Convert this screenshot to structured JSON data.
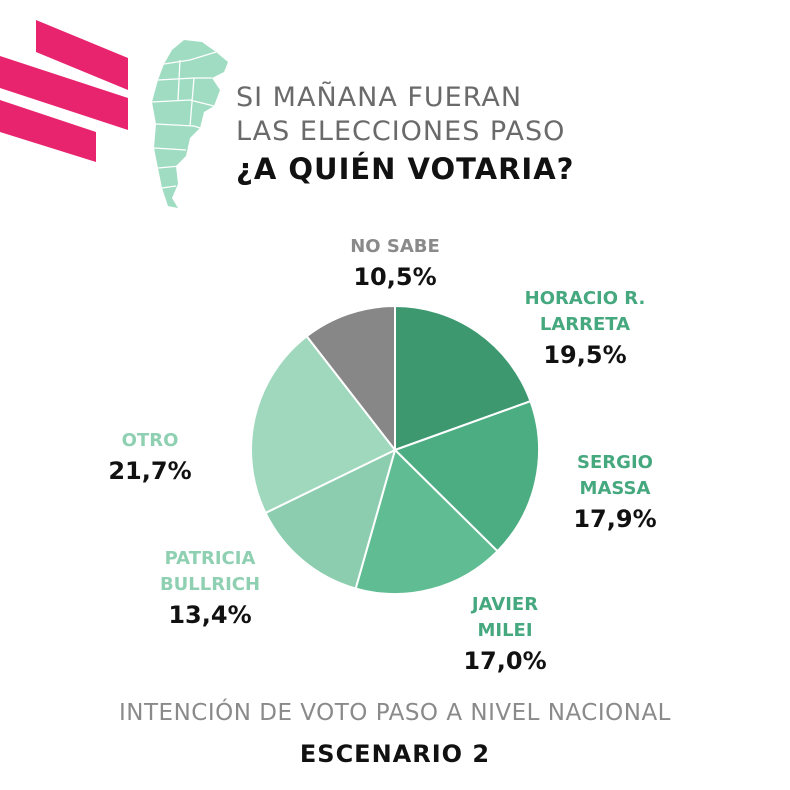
{
  "header": {
    "line1": "SI MAÑANA FUERAN",
    "line2": "LAS ELECCIONES PASO",
    "question": "¿A QUIÉN VOTARIA?"
  },
  "colors": {
    "brand": "#e8246f",
    "map": "#9fdcc2",
    "slice_larreta": "#3d9870",
    "slice_massa": "#4dad82",
    "slice_milei": "#60bd93",
    "slice_bullrich": "#8ccdaf",
    "slice_otro": "#9fd8bd",
    "slice_nosabe": "#878787"
  },
  "chart_data": {
    "type": "pie",
    "title": "",
    "slices": [
      {
        "label_lines": [
          "HORACIO R.",
          "LARRETA"
        ],
        "value": 19.5,
        "value_text": "19,5%",
        "color": "#3d9870"
      },
      {
        "label_lines": [
          "SERGIO",
          "MASSA"
        ],
        "value": 17.9,
        "value_text": "17,9%",
        "color": "#4dad82"
      },
      {
        "label_lines": [
          "JAVIER",
          "MILEI"
        ],
        "value": 17.0,
        "value_text": "17,0%",
        "color": "#60bd93"
      },
      {
        "label_lines": [
          "PATRICIA",
          "BULLRICH"
        ],
        "value": 13.4,
        "value_text": "13,4%",
        "color": "#8ccdaf"
      },
      {
        "label_lines": [
          "OTRO"
        ],
        "value": 21.7,
        "value_text": "21,7%",
        "color": "#9fd8bd"
      },
      {
        "label_lines": [
          "NO SABE"
        ],
        "value": 10.5,
        "value_text": "10,5%",
        "color": "#878787"
      }
    ]
  },
  "footer": {
    "line": "INTENCIÓN DE VOTO PASO A NIVEL NACIONAL",
    "scenario": "ESCENARIO 2"
  }
}
